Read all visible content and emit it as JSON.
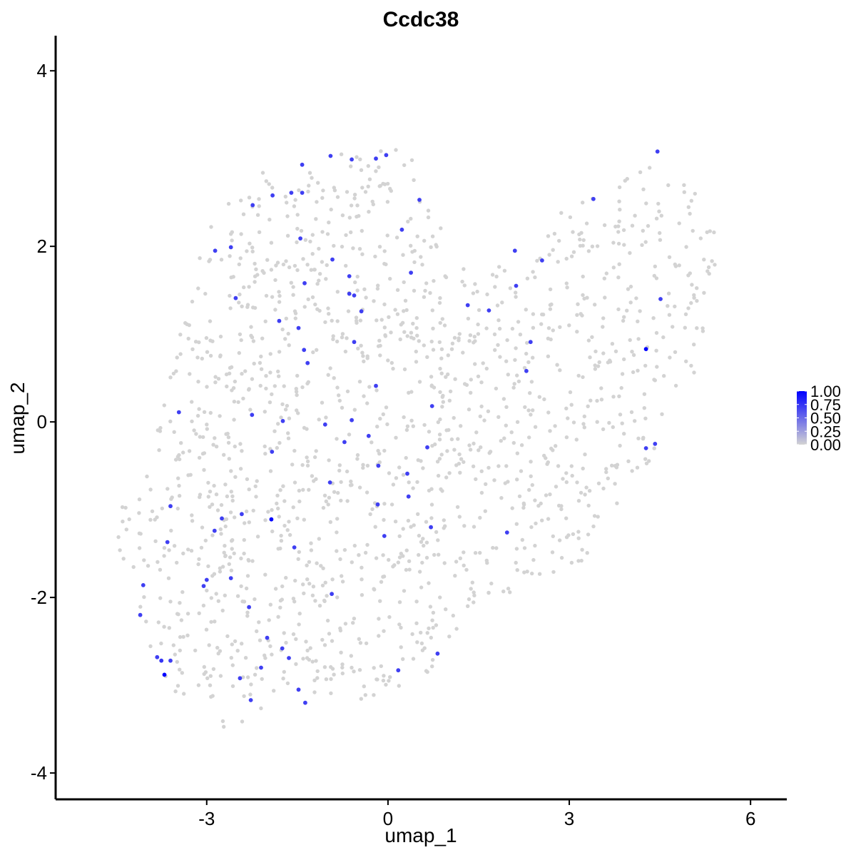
{
  "chart_data": {
    "type": "scatter",
    "title": "Ccdc38",
    "xlabel": "umap_1",
    "ylabel": "umap_2",
    "xlim": [
      -5.5,
      6.6
    ],
    "ylim": [
      -4.3,
      4.4
    ],
    "x_ticks": [
      -3,
      0,
      3,
      6
    ],
    "y_ticks": [
      -4,
      -2,
      0,
      2,
      4
    ],
    "x_tick_labels": [
      "-3",
      "0",
      "3",
      "6"
    ],
    "y_tick_labels": [
      "-4",
      "-2",
      "0",
      "2",
      "4"
    ],
    "grid": false,
    "color_scale": {
      "low": "#D3D3D3",
      "high": "#0000FF",
      "min": 0,
      "max": 1
    },
    "legend": {
      "position": "right",
      "breaks": [
        1.0,
        0.75,
        0.5,
        0.25,
        0.0
      ],
      "labels": [
        "1.00",
        "0.75",
        "0.50",
        "0.25",
        "0.00"
      ]
    },
    "background_cloud": {
      "value": 0,
      "count": 1500,
      "boundary_polygon": [
        [
          -4.7,
          -1.3
        ],
        [
          -4.2,
          -1.7
        ],
        [
          -4.0,
          -2.6
        ],
        [
          -3.5,
          -3.1
        ],
        [
          -2.7,
          -3.5
        ],
        [
          -2.0,
          -3.3
        ],
        [
          -1.5,
          -3.1
        ],
        [
          0.0,
          -3.2
        ],
        [
          0.6,
          -2.9
        ],
        [
          1.3,
          -2.3
        ],
        [
          2.3,
          -1.9
        ],
        [
          3.2,
          -1.6
        ],
        [
          4.2,
          -0.6
        ],
        [
          4.6,
          -0.1
        ],
        [
          5.1,
          0.5
        ],
        [
          5.4,
          1.2
        ],
        [
          5.5,
          2.0
        ],
        [
          5.2,
          2.5
        ],
        [
          4.7,
          3.0
        ],
        [
          4.3,
          3.0
        ],
        [
          3.8,
          2.7
        ],
        [
          3.0,
          2.5
        ],
        [
          2.1,
          1.9
        ],
        [
          1.4,
          1.6
        ],
        [
          0.8,
          2.6
        ],
        [
          0.2,
          3.2
        ],
        [
          -0.5,
          3.1
        ],
        [
          -1.5,
          3.0
        ],
        [
          -2.3,
          2.8
        ],
        [
          -2.9,
          2.3
        ],
        [
          -3.2,
          1.8
        ],
        [
          -3.4,
          1.2
        ],
        [
          -3.7,
          0.5
        ],
        [
          -3.9,
          -0.5
        ],
        [
          -4.3,
          -0.8
        ]
      ]
    },
    "expressing_points": [
      {
        "x": -3.7,
        "y": -2.88,
        "v": 1.0
      },
      {
        "x": -1.93,
        "y": -1.11,
        "v": 1.0
      },
      {
        "x": 4.27,
        "y": 0.83,
        "v": 1.0
      },
      {
        "x": -3.75,
        "y": -2.72,
        "v": 0.75
      },
      {
        "x": -3.6,
        "y": -2.72,
        "v": 0.7
      },
      {
        "x": -3.82,
        "y": -2.68,
        "v": 0.7
      },
      {
        "x": -4.1,
        "y": -2.2,
        "v": 0.7
      },
      {
        "x": -4.05,
        "y": -1.86,
        "v": 0.7
      },
      {
        "x": -3.65,
        "y": -1.37,
        "v": 0.7
      },
      {
        "x": -3.6,
        "y": -0.96,
        "v": 0.7
      },
      {
        "x": -3.05,
        "y": -1.87,
        "v": 0.7
      },
      {
        "x": -3.0,
        "y": -1.8,
        "v": 0.7
      },
      {
        "x": -2.75,
        "y": -1.1,
        "v": 0.7
      },
      {
        "x": -2.87,
        "y": -1.24,
        "v": 0.7
      },
      {
        "x": -2.6,
        "y": -1.78,
        "v": 0.7
      },
      {
        "x": -2.42,
        "y": -1.05,
        "v": 0.7
      },
      {
        "x": -2.25,
        "y": 0.08,
        "v": 0.7
      },
      {
        "x": -2.45,
        "y": -2.92,
        "v": 0.7
      },
      {
        "x": -2.3,
        "y": -2.11,
        "v": 0.7
      },
      {
        "x": -2.27,
        "y": -3.17,
        "v": 0.7
      },
      {
        "x": -2.0,
        "y": -2.46,
        "v": 0.7
      },
      {
        "x": -2.1,
        "y": -2.8,
        "v": 0.7
      },
      {
        "x": -1.92,
        "y": -0.34,
        "v": 0.7
      },
      {
        "x": -1.75,
        "y": -2.58,
        "v": 0.7
      },
      {
        "x": -1.64,
        "y": -2.69,
        "v": 0.7
      },
      {
        "x": -1.55,
        "y": -1.43,
        "v": 0.7
      },
      {
        "x": -1.48,
        "y": -3.05,
        "v": 0.7
      },
      {
        "x": -1.37,
        "y": -3.2,
        "v": 0.7
      },
      {
        "x": -1.74,
        "y": 0.01,
        "v": 0.7
      },
      {
        "x": -3.46,
        "y": 0.11,
        "v": 0.7
      },
      {
        "x": -2.52,
        "y": 1.41,
        "v": 0.7
      },
      {
        "x": -2.86,
        "y": 1.95,
        "v": 0.7
      },
      {
        "x": -2.6,
        "y": 1.99,
        "v": 0.7
      },
      {
        "x": -2.24,
        "y": 2.47,
        "v": 0.7
      },
      {
        "x": -1.91,
        "y": 2.58,
        "v": 0.7
      },
      {
        "x": -1.6,
        "y": 2.61,
        "v": 0.7
      },
      {
        "x": -1.42,
        "y": 2.61,
        "v": 0.7
      },
      {
        "x": -1.42,
        "y": 2.93,
        "v": 0.7
      },
      {
        "x": -0.95,
        "y": 3.03,
        "v": 0.7
      },
      {
        "x": -0.6,
        "y": 2.99,
        "v": 0.7
      },
      {
        "x": -0.2,
        "y": 3.0,
        "v": 0.7
      },
      {
        "x": -0.03,
        "y": 3.04,
        "v": 0.7
      },
      {
        "x": 0.52,
        "y": 2.53,
        "v": 0.7
      },
      {
        "x": 0.23,
        "y": 2.19,
        "v": 0.7
      },
      {
        "x": 0.38,
        "y": 1.7,
        "v": 0.7
      },
      {
        "x": -1.45,
        "y": 2.09,
        "v": 0.7
      },
      {
        "x": -0.92,
        "y": 1.85,
        "v": 0.7
      },
      {
        "x": -1.38,
        "y": 1.58,
        "v": 0.7
      },
      {
        "x": -0.64,
        "y": 1.66,
        "v": 0.7
      },
      {
        "x": -0.64,
        "y": 1.46,
        "v": 0.7
      },
      {
        "x": -0.56,
        "y": 1.44,
        "v": 0.7
      },
      {
        "x": -0.44,
        "y": 1.26,
        "v": 0.7
      },
      {
        "x": -1.8,
        "y": 1.15,
        "v": 0.7
      },
      {
        "x": -1.48,
        "y": 1.07,
        "v": 0.7
      },
      {
        "x": -1.39,
        "y": 0.82,
        "v": 0.7
      },
      {
        "x": -1.33,
        "y": 0.67,
        "v": 0.7
      },
      {
        "x": -0.56,
        "y": 0.91,
        "v": 0.7
      },
      {
        "x": -0.2,
        "y": 0.41,
        "v": 0.7
      },
      {
        "x": -1.04,
        "y": -0.03,
        "v": 0.7
      },
      {
        "x": -0.6,
        "y": 0.02,
        "v": 0.7
      },
      {
        "x": -0.72,
        "y": -0.23,
        "v": 0.7
      },
      {
        "x": -0.32,
        "y": -0.16,
        "v": 0.7
      },
      {
        "x": -0.16,
        "y": -0.5,
        "v": 0.7
      },
      {
        "x": -0.96,
        "y": -0.69,
        "v": 0.7
      },
      {
        "x": 0.32,
        "y": -0.59,
        "v": 0.7
      },
      {
        "x": -0.17,
        "y": -0.94,
        "v": 0.7
      },
      {
        "x": 0.34,
        "y": -0.85,
        "v": 0.7
      },
      {
        "x": -0.06,
        "y": -1.3,
        "v": 0.7
      },
      {
        "x": 0.65,
        "y": -0.29,
        "v": 0.7
      },
      {
        "x": 0.73,
        "y": 0.18,
        "v": 0.7
      },
      {
        "x": 0.71,
        "y": -1.2,
        "v": 0.7
      },
      {
        "x": -0.93,
        "y": -1.96,
        "v": 0.7
      },
      {
        "x": 0.17,
        "y": -2.83,
        "v": 0.7
      },
      {
        "x": 0.82,
        "y": -2.64,
        "v": 0.7
      },
      {
        "x": 1.32,
        "y": 1.33,
        "v": 0.7
      },
      {
        "x": 1.67,
        "y": 1.27,
        "v": 0.7
      },
      {
        "x": 1.97,
        "y": -1.26,
        "v": 0.7
      },
      {
        "x": 2.1,
        "y": 1.95,
        "v": 0.7
      },
      {
        "x": 2.12,
        "y": 1.55,
        "v": 0.7
      },
      {
        "x": 2.36,
        "y": 0.91,
        "v": 0.7
      },
      {
        "x": 2.29,
        "y": 0.58,
        "v": 0.7
      },
      {
        "x": 2.55,
        "y": 1.84,
        "v": 0.7
      },
      {
        "x": 3.4,
        "y": 2.54,
        "v": 0.7
      },
      {
        "x": 4.46,
        "y": 3.08,
        "v": 0.7
      },
      {
        "x": 4.51,
        "y": 1.4,
        "v": 0.7
      },
      {
        "x": 4.27,
        "y": -0.3,
        "v": 0.7
      },
      {
        "x": 4.42,
        "y": -0.25,
        "v": 0.7
      }
    ]
  }
}
